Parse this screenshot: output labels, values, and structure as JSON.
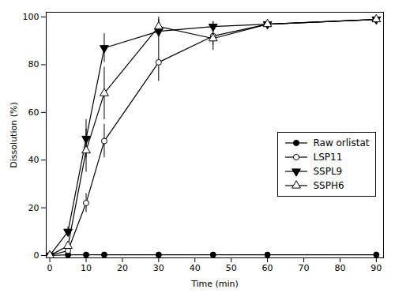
{
  "chart_data": {
    "type": "line",
    "xlabel": "Time (min)",
    "ylabel": "Dissolution (%)",
    "x": [
      0,
      5,
      10,
      15,
      30,
      45,
      60,
      90
    ],
    "xlim": [
      -1,
      92
    ],
    "ylim": [
      -1,
      102
    ],
    "xticks": [
      0,
      10,
      20,
      30,
      40,
      50,
      60,
      70,
      80,
      90
    ],
    "yticks": [
      0,
      20,
      40,
      60,
      80,
      100
    ],
    "grid": false,
    "legend": "right",
    "series": [
      {
        "name": "Raw orlistat",
        "color": "black",
        "marker": "circle",
        "line_style": "solid",
        "values": [
          0,
          0.3,
          0.3,
          0.3,
          0.3,
          0.3,
          0.3,
          0.3
        ],
        "yerr": [
          0,
          0.15,
          0.15,
          0.15,
          0.15,
          0.15,
          0.15,
          0.15
        ]
      },
      {
        "name": "LSP11",
        "color": "black",
        "marker": "circle-open",
        "line_style": "solid",
        "values": [
          0,
          2,
          22,
          48,
          81,
          92,
          97,
          99
        ],
        "yerr": [
          0,
          1,
          4,
          7,
          8,
          6,
          2,
          0.5
        ]
      },
      {
        "name": "SSPL9",
        "color": "black",
        "marker": "triangle-down",
        "line_style": "solid",
        "values": [
          0,
          10,
          49,
          87,
          94,
          96,
          97,
          99
        ],
        "yerr": [
          0,
          2,
          8,
          6,
          5,
          2,
          1,
          0.5
        ]
      },
      {
        "name": "SSPH6",
        "color": "black",
        "marker": "triangle-up-open",
        "line_style": "solid",
        "values": [
          0,
          4,
          44,
          68,
          96,
          91,
          97,
          99
        ],
        "yerr": [
          0,
          1.5,
          9,
          11,
          4,
          3,
          1.5,
          0.5
        ]
      }
    ]
  }
}
